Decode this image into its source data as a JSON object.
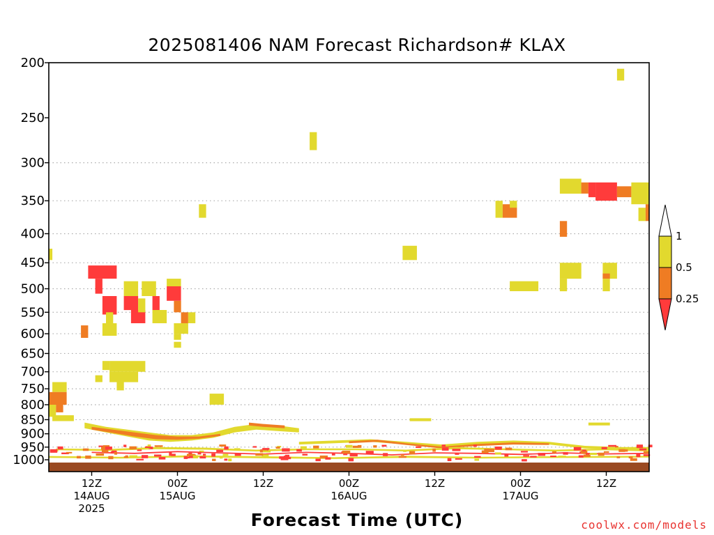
{
  "title": "2025081406 NAM Forecast Richardson# KLAX",
  "xaxis_title": "Forecast Time (UTC)",
  "credit": "coolwx.com/models",
  "colors": {
    "lt_025": "#ff3b3b",
    "b025_05": "#ef7c23",
    "b05_1": "#e2d92e",
    "ground": "#9a4a22",
    "grid": "#aaaaaa",
    "axis": "#000000"
  },
  "chart_data": {
    "type": "heatmap",
    "title": "2025081406 NAM Forecast Richardson# KLAX",
    "xlabel": "Forecast Time (UTC)",
    "ylabel": "",
    "y_scale": "log-pressure",
    "ylim_hpa": [
      1000,
      200
    ],
    "xlim_hours": [
      0,
      84
    ],
    "y_ticks": [
      200,
      250,
      300,
      350,
      400,
      450,
      500,
      550,
      600,
      650,
      700,
      750,
      800,
      850,
      900,
      950,
      1000
    ],
    "grid_levels": [
      300,
      350,
      400,
      450,
      500,
      550,
      600,
      650,
      700,
      750,
      800,
      850,
      900,
      950
    ],
    "x_ticks": [
      {
        "hour": 6,
        "lines": [
          "12Z",
          "14AUG",
          "2025"
        ]
      },
      {
        "hour": 18,
        "lines": [
          "00Z",
          "15AUG"
        ]
      },
      {
        "hour": 30,
        "lines": [
          "12Z"
        ]
      },
      {
        "hour": 42,
        "lines": [
          "00Z",
          "16AUG"
        ]
      },
      {
        "hour": 54,
        "lines": [
          "12Z"
        ]
      },
      {
        "hour": 66,
        "lines": [
          "00Z",
          "17AUG"
        ]
      },
      {
        "hour": 78,
        "lines": [
          "12Z"
        ]
      }
    ],
    "colorbar": {
      "labels": [
        "1",
        "0.5",
        "0.25"
      ],
      "bins": [
        {
          "range": "0.5-1",
          "color": "#e2d92e"
        },
        {
          "range": "0.25-0.5",
          "color": "#ef7c23"
        },
        {
          "range": "<0.25",
          "color": "#ff3b3b"
        }
      ]
    },
    "regions": [
      {
        "t0": 0.0,
        "t1": 0.5,
        "p_top": 425,
        "p_bot": 445,
        "cat": "y"
      },
      {
        "t0": 0.5,
        "t1": 2.5,
        "p_top": 730,
        "p_bot": 760,
        "cat": "y"
      },
      {
        "t0": 0.0,
        "t1": 2.5,
        "p_top": 760,
        "p_bot": 800,
        "cat": "o"
      },
      {
        "t0": 0.0,
        "t1": 1.0,
        "p_top": 800,
        "p_bot": 840,
        "cat": "y"
      },
      {
        "t0": 1.0,
        "t1": 2.0,
        "p_top": 800,
        "p_bot": 825,
        "cat": "o"
      },
      {
        "t0": 0.5,
        "t1": 3.5,
        "p_top": 835,
        "p_bot": 855,
        "cat": "y"
      },
      {
        "t0": 4.5,
        "t1": 5.5,
        "p_top": 580,
        "p_bot": 610,
        "cat": "o"
      },
      {
        "t0": 5.5,
        "t1": 9.5,
        "p_top": 455,
        "p_bot": 480,
        "cat": "r"
      },
      {
        "t0": 6.5,
        "t1": 7.5,
        "p_top": 480,
        "p_bot": 510,
        "cat": "r"
      },
      {
        "t0": 7.5,
        "t1": 9.5,
        "p_top": 515,
        "p_bot": 555,
        "cat": "r"
      },
      {
        "t0": 10.5,
        "t1": 12.5,
        "p_top": 485,
        "p_bot": 515,
        "cat": "y"
      },
      {
        "t0": 10.5,
        "t1": 12.5,
        "p_top": 515,
        "p_bot": 545,
        "cat": "r"
      },
      {
        "t0": 11.5,
        "t1": 13.5,
        "p_top": 545,
        "p_bot": 575,
        "cat": "r"
      },
      {
        "t0": 12.5,
        "t1": 13.5,
        "p_top": 520,
        "p_bot": 550,
        "cat": "y"
      },
      {
        "t0": 13.0,
        "t1": 15.0,
        "p_top": 485,
        "p_bot": 515,
        "cat": "y"
      },
      {
        "t0": 14.5,
        "t1": 15.5,
        "p_top": 515,
        "p_bot": 545,
        "cat": "r"
      },
      {
        "t0": 14.5,
        "t1": 16.5,
        "p_top": 545,
        "p_bot": 575,
        "cat": "y"
      },
      {
        "t0": 16.5,
        "t1": 18.5,
        "p_top": 480,
        "p_bot": 495,
        "cat": "y"
      },
      {
        "t0": 16.5,
        "t1": 18.5,
        "p_top": 495,
        "p_bot": 525,
        "cat": "r"
      },
      {
        "t0": 17.5,
        "t1": 18.5,
        "p_top": 525,
        "p_bot": 550,
        "cat": "o"
      },
      {
        "t0": 18.5,
        "t1": 19.5,
        "p_top": 550,
        "p_bot": 575,
        "cat": "o"
      },
      {
        "t0": 19.5,
        "t1": 20.5,
        "p_top": 550,
        "p_bot": 575,
        "cat": "y"
      },
      {
        "t0": 17.5,
        "t1": 19.5,
        "p_top": 575,
        "p_bot": 600,
        "cat": "y"
      },
      {
        "t0": 17.5,
        "t1": 18.5,
        "p_top": 600,
        "p_bot": 615,
        "cat": "y"
      },
      {
        "t0": 17.5,
        "t1": 18.5,
        "p_top": 620,
        "p_bot": 635,
        "cat": "y"
      },
      {
        "t0": 7.5,
        "t1": 9.5,
        "p_top": 575,
        "p_bot": 605,
        "cat": "y"
      },
      {
        "t0": 8.0,
        "t1": 9.0,
        "p_top": 550,
        "p_bot": 575,
        "cat": "y"
      },
      {
        "t0": 6.5,
        "t1": 7.5,
        "p_top": 710,
        "p_bot": 730,
        "cat": "y"
      },
      {
        "t0": 7.5,
        "t1": 8.5,
        "p_top": 670,
        "p_bot": 695,
        "cat": "y"
      },
      {
        "t0": 8.5,
        "t1": 13.5,
        "p_top": 670,
        "p_bot": 700,
        "cat": "y"
      },
      {
        "t0": 8.5,
        "t1": 12.5,
        "p_top": 700,
        "p_bot": 730,
        "cat": "y"
      },
      {
        "t0": 9.5,
        "t1": 10.5,
        "p_top": 730,
        "p_bot": 755,
        "cat": "y"
      },
      {
        "t0": 21.0,
        "t1": 22.0,
        "p_top": 355,
        "p_bot": 375,
        "cat": "y"
      },
      {
        "t0": 22.5,
        "t1": 24.5,
        "p_top": 765,
        "p_bot": 800,
        "cat": "y"
      },
      {
        "t0": 36.5,
        "t1": 37.5,
        "p_top": 265,
        "p_bot": 285,
        "cat": "y"
      },
      {
        "t0": 49.5,
        "t1": 51.5,
        "p_top": 420,
        "p_bot": 445,
        "cat": "y"
      },
      {
        "t0": 50.5,
        "t1": 53.5,
        "p_top": 845,
        "p_bot": 855,
        "cat": "y"
      },
      {
        "t0": 62.5,
        "t1": 63.5,
        "p_top": 350,
        "p_bot": 375,
        "cat": "y"
      },
      {
        "t0": 63.5,
        "t1": 65.5,
        "p_top": 355,
        "p_bot": 375,
        "cat": "o"
      },
      {
        "t0": 64.5,
        "t1": 65.5,
        "p_top": 350,
        "p_bot": 360,
        "cat": "y"
      },
      {
        "t0": 64.5,
        "t1": 68.5,
        "p_top": 485,
        "p_bot": 505,
        "cat": "y"
      },
      {
        "t0": 71.5,
        "t1": 72.5,
        "p_top": 380,
        "p_bot": 405,
        "cat": "o"
      },
      {
        "t0": 71.5,
        "t1": 74.5,
        "p_top": 320,
        "p_bot": 340,
        "cat": "y"
      },
      {
        "t0": 74.5,
        "t1": 75.5,
        "p_top": 325,
        "p_bot": 340,
        "cat": "o"
      },
      {
        "t0": 75.5,
        "t1": 76.5,
        "p_top": 325,
        "p_bot": 345,
        "cat": "r"
      },
      {
        "t0": 76.5,
        "t1": 79.5,
        "p_top": 325,
        "p_bot": 350,
        "cat": "r"
      },
      {
        "t0": 79.5,
        "t1": 81.5,
        "p_top": 330,
        "p_bot": 345,
        "cat": "o"
      },
      {
        "t0": 81.5,
        "t1": 84.0,
        "p_top": 325,
        "p_bot": 355,
        "cat": "y"
      },
      {
        "t0": 82.5,
        "t1": 83.5,
        "p_top": 360,
        "p_bot": 380,
        "cat": "y"
      },
      {
        "t0": 83.5,
        "t1": 84.0,
        "p_top": 355,
        "p_bot": 380,
        "cat": "o"
      },
      {
        "t0": 79.5,
        "t1": 80.5,
        "p_top": 205,
        "p_bot": 215,
        "cat": "y"
      },
      {
        "t0": 71.5,
        "t1": 74.5,
        "p_top": 450,
        "p_bot": 480,
        "cat": "y"
      },
      {
        "t0": 71.5,
        "t1": 72.5,
        "p_top": 480,
        "p_bot": 505,
        "cat": "y"
      },
      {
        "t0": 77.5,
        "t1": 79.5,
        "p_top": 450,
        "p_bot": 480,
        "cat": "y"
      },
      {
        "t0": 77.5,
        "t1": 78.5,
        "p_top": 470,
        "p_bot": 480,
        "cat": "o"
      },
      {
        "t0": 77.5,
        "t1": 78.5,
        "p_top": 480,
        "p_bot": 505,
        "cat": "y"
      },
      {
        "t0": 75.5,
        "t1": 78.5,
        "p_top": 860,
        "p_bot": 870,
        "cat": "y"
      }
    ],
    "bands": [
      {
        "t": [
          5,
          8,
          11,
          14,
          17,
          20,
          23,
          26,
          29,
          32,
          35
        ],
        "p_top": [
          860,
          875,
          885,
          895,
          905,
          905,
          895,
          875,
          865,
          870,
          880
        ],
        "p_bot": [
          880,
          895,
          910,
          925,
          930,
          925,
          915,
          895,
          885,
          890,
          895
        ],
        "cat": "y"
      },
      {
        "t": [
          6,
          9,
          12,
          15,
          18,
          21,
          24
        ],
        "p_top": [
          875,
          885,
          895,
          905,
          910,
          910,
          900
        ],
        "p_bot": [
          885,
          897,
          910,
          920,
          922,
          918,
          908
        ],
        "cat": "o"
      },
      {
        "t": [
          28,
          30,
          33
        ],
        "p_top": [
          860,
          865,
          870
        ],
        "p_bot": [
          870,
          875,
          880
        ],
        "cat": "o"
      },
      {
        "t": [
          35,
          40,
          45,
          50,
          55,
          60,
          65,
          70,
          75,
          80,
          84
        ],
        "p_top": [
          930,
          925,
          920,
          930,
          940,
          930,
          925,
          930,
          945,
          950,
          950
        ],
        "p_bot": [
          940,
          935,
          930,
          940,
          950,
          940,
          935,
          940,
          955,
          960,
          960
        ],
        "cat": "y"
      },
      {
        "t": [
          42,
          46,
          50,
          55,
          60,
          65,
          70
        ],
        "p_top": [
          928,
          922,
          935,
          948,
          938,
          932,
          935
        ],
        "p_bot": [
          935,
          930,
          942,
          955,
          946,
          940,
          942
        ],
        "cat": "o"
      },
      {
        "t": [
          1,
          8,
          15,
          22,
          29,
          36,
          43,
          50,
          57,
          64,
          71,
          78,
          84
        ],
        "p_top": [
          955,
          958,
          950,
          952,
          960,
          955,
          955,
          960,
          950,
          955,
          960,
          955,
          960
        ],
        "p_bot": [
          962,
          965,
          958,
          960,
          967,
          962,
          962,
          967,
          958,
          962,
          967,
          962,
          967
        ],
        "cat": "y"
      },
      {
        "t": [
          6,
          12,
          18,
          24,
          30,
          36,
          42,
          48,
          54,
          60,
          66,
          72,
          78,
          84
        ],
        "p_top": [
          968,
          972,
          965,
          970,
          975,
          968,
          972,
          978,
          970,
          972,
          976,
          970,
          974,
          972
        ],
        "p_bot": [
          973,
          977,
          970,
          975,
          980,
          973,
          977,
          983,
          975,
          977,
          981,
          975,
          979,
          977
        ],
        "cat": "r"
      },
      {
        "t": [
          0,
          10,
          20,
          30,
          40,
          50,
          60,
          70,
          84
        ],
        "p_top": [
          985,
          988,
          982,
          986,
          990,
          984,
          988,
          986,
          984
        ],
        "p_bot": [
          992,
          995,
          990,
          994,
          997,
          992,
          995,
          993,
          991
        ],
        "cat": "y"
      }
    ],
    "speckle_note": "scattered small red/orange/yellow cells between 940 and 1000 hPa"
  }
}
